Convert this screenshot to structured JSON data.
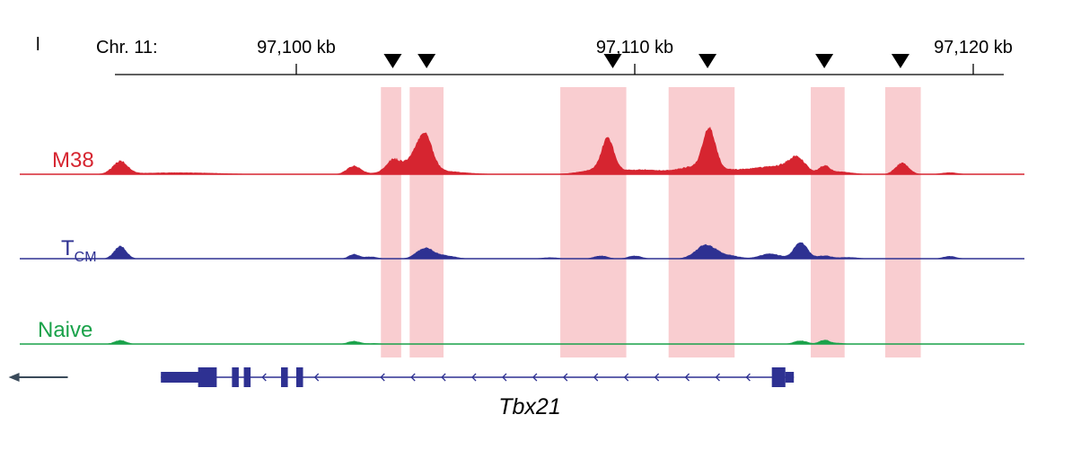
{
  "panel_letter": "l",
  "chromosome_label": "Chr. 11:",
  "ticks": [
    {
      "label": "97,100 kb",
      "kb": 97100
    },
    {
      "label": "97,110 kb",
      "kb": 97110
    },
    {
      "label": "97,120 kb",
      "kb": 97120
    }
  ],
  "arrowhead_kb": [
    97102.85,
    97103.85,
    97109.35,
    97112.15,
    97115.6,
    97117.85
  ],
  "highlight_regions_kb": [
    [
      97102.5,
      97103.1
    ],
    [
      97103.35,
      97104.35
    ],
    [
      97107.8,
      97109.75
    ],
    [
      97111.0,
      97112.95
    ],
    [
      97115.2,
      97116.2
    ],
    [
      97117.4,
      97118.45
    ]
  ],
  "colors": {
    "M38": "#d62530",
    "TCM": "#2e3192",
    "Naive": "#1aa24a",
    "highlight": "#f9cdd0",
    "gene": "#2e3192",
    "axis": "#000000"
  },
  "tracks": [
    {
      "key": "M38",
      "label": "M38",
      "color": "#d62530",
      "max": 1.0,
      "peaks": [
        [
          97094.8,
          0.28,
          0.22
        ],
        [
          97096.5,
          0.04,
          1.2
        ],
        [
          97101.7,
          0.18,
          0.2
        ],
        [
          97102.85,
          0.27,
          0.2
        ],
        [
          97103.4,
          0.2,
          0.25
        ],
        [
          97103.8,
          0.78,
          0.22
        ],
        [
          97103.75,
          0.1,
          0.9
        ],
        [
          97109.2,
          0.7,
          0.18
        ],
        [
          97109.1,
          0.12,
          0.6
        ],
        [
          97110.3,
          0.08,
          0.4
        ],
        [
          97111.1,
          0.05,
          0.4
        ],
        [
          97112.2,
          0.85,
          0.18
        ],
        [
          97112.0,
          0.2,
          0.5
        ],
        [
          97113.5,
          0.12,
          0.6
        ],
        [
          97114.8,
          0.33,
          0.25
        ],
        [
          97114.3,
          0.12,
          0.4
        ],
        [
          97115.6,
          0.16,
          0.15
        ],
        [
          97116.0,
          0.06,
          0.4
        ],
        [
          97117.9,
          0.25,
          0.2
        ],
        [
          97119.3,
          0.04,
          0.25
        ]
      ]
    },
    {
      "key": "TCM",
      "label": "T",
      "subscript": "CM",
      "color": "#2e3192",
      "max": 1.0,
      "peaks": [
        [
          97094.8,
          0.5,
          0.18
        ],
        [
          97101.7,
          0.18,
          0.15
        ],
        [
          97102.2,
          0.08,
          0.2
        ],
        [
          97103.8,
          0.42,
          0.25
        ],
        [
          97104.4,
          0.12,
          0.3
        ],
        [
          97107.5,
          0.05,
          0.25
        ],
        [
          97109.0,
          0.12,
          0.2
        ],
        [
          97110.0,
          0.12,
          0.2
        ],
        [
          97112.1,
          0.55,
          0.3
        ],
        [
          97112.8,
          0.12,
          0.3
        ],
        [
          97114.0,
          0.2,
          0.3
        ],
        [
          97114.9,
          0.65,
          0.2
        ],
        [
          97115.6,
          0.12,
          0.2
        ],
        [
          97116.3,
          0.06,
          0.3
        ],
        [
          97119.3,
          0.1,
          0.2
        ]
      ]
    },
    {
      "key": "Naive",
      "label": "Naive",
      "color": "#1aa24a",
      "max": 1.0,
      "peaks": [
        [
          97094.8,
          0.28,
          0.18
        ],
        [
          97101.7,
          0.22,
          0.18
        ],
        [
          97102.3,
          0.06,
          0.2
        ],
        [
          97114.9,
          0.25,
          0.2
        ],
        [
          97115.6,
          0.3,
          0.15
        ],
        [
          97116.0,
          0.08,
          0.2
        ]
      ]
    }
  ],
  "gene": {
    "name": "Tbx21",
    "direction": "minus",
    "direction_arrow_kb": [
      97091.5,
      97093.25
    ],
    "intron_kb": [
      97096.0,
      97114.7
    ],
    "exons_kb": [
      [
        97096.0,
        97097.35,
        "utr"
      ],
      [
        97097.1,
        97097.65,
        "cds"
      ],
      [
        97098.1,
        97098.3,
        "cds"
      ],
      [
        97098.45,
        97098.65,
        "cds"
      ],
      [
        97099.55,
        97099.75,
        "cds"
      ],
      [
        97100.0,
        97100.2,
        "cds"
      ],
      [
        97114.05,
        97114.45,
        "cds"
      ],
      [
        97114.45,
        97114.7,
        "utr"
      ]
    ],
    "chevrons_kb": [
      97096.95,
      97099.0,
      97100.55,
      97102.5,
      97103.4,
      97104.3,
      97105.2,
      97106.1,
      97107.0,
      97107.9,
      97108.8,
      97109.7,
      97110.6,
      97111.5,
      97112.4,
      97113.3
    ]
  }
}
